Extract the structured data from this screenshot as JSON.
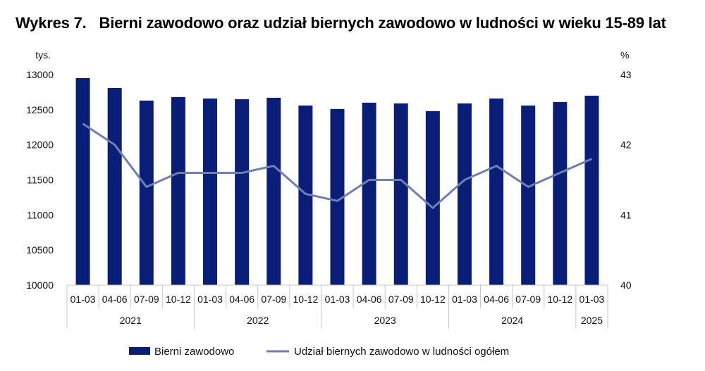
{
  "title_number": "Wykres 7.",
  "title_text": "Bierni zawodowo oraz udział biernych zawodowo w ludności w wieku 15-89 lat",
  "chart_data": {
    "type": "bar",
    "left_axis": {
      "unit": "tys.",
      "ylim": [
        10000,
        13000
      ],
      "ticks": [
        "13000",
        "12500",
        "12000",
        "11500",
        "11000",
        "10500",
        "10000"
      ]
    },
    "right_axis": {
      "unit": "%",
      "ylim": [
        40,
        43
      ],
      "ticks": [
        "43",
        "42",
        "41",
        "40"
      ]
    },
    "categories": [
      "01-03",
      "04-06",
      "07-09",
      "10-12",
      "01-03",
      "04-06",
      "07-09",
      "10-12",
      "01-03",
      "04-06",
      "07-09",
      "10-12",
      "01-03",
      "04-06",
      "07-09",
      "10-12",
      "01-03"
    ],
    "years": [
      {
        "label": "2021",
        "count": 4
      },
      {
        "label": "2022",
        "count": 4
      },
      {
        "label": "2023",
        "count": 4
      },
      {
        "label": "2024",
        "count": 4
      },
      {
        "label": "2025",
        "count": 1
      }
    ],
    "series": [
      {
        "name": "Bierni zawodowo",
        "type": "bar",
        "axis": "left",
        "color": "#0a1e78",
        "values": [
          12950,
          12810,
          12630,
          12680,
          12660,
          12650,
          12670,
          12560,
          12510,
          12600,
          12590,
          12480,
          12590,
          12660,
          12560,
          12610,
          12700
        ]
      },
      {
        "name": "Udział biernych zawodowo w ludności ogółem",
        "type": "line",
        "axis": "right",
        "color": "#6d7fb5",
        "values": [
          42.3,
          42.0,
          41.4,
          41.6,
          41.6,
          41.6,
          41.7,
          41.3,
          41.2,
          41.5,
          41.5,
          41.1,
          41.5,
          41.7,
          41.4,
          41.6,
          41.8
        ]
      }
    ],
    "grid": false,
    "legend_position": "bottom"
  }
}
